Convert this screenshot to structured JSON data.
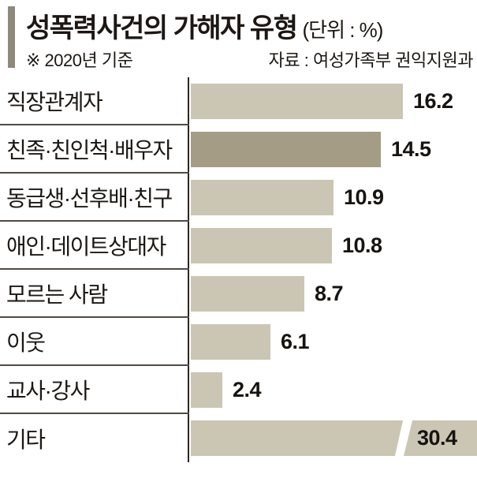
{
  "header": {
    "title": "성폭력사건의 가해자 유형",
    "unit_label": "(단위 : %)",
    "note": "※ 2020년 기준",
    "source": "자료 : 여성가족부 권익지원과"
  },
  "colors": {
    "accent_bar": "#8e897b",
    "bar_light": "#cbc5b4",
    "bar_dark": "#a49c85",
    "axis_line": "#2b2824",
    "divider_line": "#4f4a44",
    "text": "#1c1713"
  },
  "chart_data": {
    "type": "bar",
    "orientation": "horizontal",
    "unit": "%",
    "title": "성폭력사건의 가해자 유형 (단위 : %)",
    "categories": [
      "직장관계자",
      "친족·친인척·배우자",
      "동급생·선후배·친구",
      "애인·데이트상대자",
      "모르는 사람",
      "이웃",
      "교사·강사",
      "기타"
    ],
    "values": [
      16.2,
      14.5,
      10.9,
      10.8,
      8.7,
      6.1,
      2.4,
      30.4
    ],
    "value_labels": [
      "16.2",
      "14.5",
      "10.9",
      "10.8",
      "8.7",
      "6.1",
      "2.4",
      "30.4"
    ],
    "highlight_index": 1,
    "broken_bar_index": 7,
    "xlim": [
      0,
      21.9
    ],
    "grid": false,
    "legend": false
  }
}
